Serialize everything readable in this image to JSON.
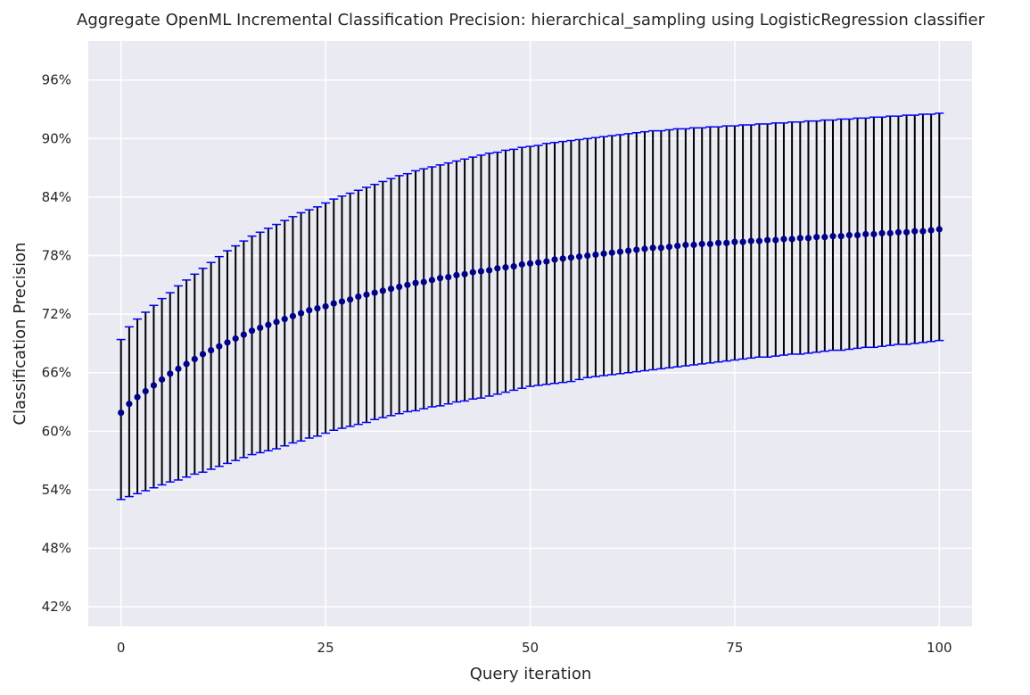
{
  "chart_data": {
    "type": "scatter",
    "title": "Aggregate OpenML Incremental Classification Precision: hierarchical_sampling using LogisticRegression classifier",
    "xlabel": "Query iteration",
    "ylabel": "Classification Precision",
    "xlim": [
      -4,
      104
    ],
    "ylim": [
      40,
      100
    ],
    "xticks": [
      0,
      25,
      50,
      75,
      100
    ],
    "xtick_labels": [
      "0",
      "25",
      "50",
      "75",
      "100"
    ],
    "yticks": [
      42,
      48,
      54,
      60,
      66,
      72,
      78,
      84,
      90,
      96
    ],
    "ytick_labels": [
      "42%",
      "48%",
      "54%",
      "60%",
      "66%",
      "72%",
      "78%",
      "84%",
      "90%",
      "96%"
    ],
    "grid": true,
    "legend": "none",
    "background_color": "#eaeaf2",
    "grid_color": "#ffffff",
    "point_color": "#00008b",
    "errorbar_color": "#000000",
    "cap_color": "#0000ff",
    "x": [
      0,
      1,
      2,
      3,
      4,
      5,
      6,
      7,
      8,
      9,
      10,
      11,
      12,
      13,
      14,
      15,
      16,
      17,
      18,
      19,
      20,
      21,
      22,
      23,
      24,
      25,
      26,
      27,
      28,
      29,
      30,
      31,
      32,
      33,
      34,
      35,
      36,
      37,
      38,
      39,
      40,
      41,
      42,
      43,
      44,
      45,
      46,
      47,
      48,
      49,
      50,
      51,
      52,
      53,
      54,
      55,
      56,
      57,
      58,
      59,
      60,
      61,
      62,
      63,
      64,
      65,
      66,
      67,
      68,
      69,
      70,
      71,
      72,
      73,
      74,
      75,
      76,
      77,
      78,
      79,
      80,
      81,
      82,
      83,
      84,
      85,
      86,
      87,
      88,
      89,
      90,
      91,
      92,
      93,
      94,
      95,
      96,
      97,
      98,
      99,
      100
    ],
    "mean": [
      61.9,
      62.8,
      63.5,
      64.1,
      64.7,
      65.3,
      65.9,
      66.4,
      66.9,
      67.4,
      67.9,
      68.3,
      68.7,
      69.1,
      69.5,
      69.9,
      70.3,
      70.6,
      70.9,
      71.2,
      71.5,
      71.8,
      72.1,
      72.4,
      72.6,
      72.8,
      73.1,
      73.3,
      73.5,
      73.8,
      74.0,
      74.2,
      74.4,
      74.6,
      74.8,
      75.0,
      75.2,
      75.3,
      75.5,
      75.7,
      75.8,
      76.0,
      76.1,
      76.3,
      76.4,
      76.5,
      76.7,
      76.8,
      76.9,
      77.1,
      77.2,
      77.3,
      77.4,
      77.6,
      77.7,
      77.8,
      77.9,
      78.0,
      78.1,
      78.2,
      78.3,
      78.4,
      78.5,
      78.6,
      78.7,
      78.8,
      78.8,
      78.9,
      79.0,
      79.1,
      79.1,
      79.2,
      79.2,
      79.3,
      79.3,
      79.4,
      79.4,
      79.5,
      79.5,
      79.6,
      79.6,
      79.7,
      79.7,
      79.8,
      79.8,
      79.9,
      79.9,
      80.0,
      80.0,
      80.1,
      80.1,
      80.2,
      80.2,
      80.3,
      80.3,
      80.4,
      80.4,
      80.5,
      80.5,
      80.6,
      80.7
    ],
    "upper": [
      69.4,
      70.7,
      71.5,
      72.2,
      72.9,
      73.6,
      74.2,
      74.9,
      75.5,
      76.1,
      76.7,
      77.3,
      77.9,
      78.5,
      79.0,
      79.5,
      80.0,
      80.4,
      80.8,
      81.2,
      81.6,
      82.0,
      82.4,
      82.7,
      83.0,
      83.4,
      83.8,
      84.1,
      84.4,
      84.7,
      85.0,
      85.3,
      85.6,
      85.9,
      86.2,
      86.4,
      86.7,
      86.9,
      87.1,
      87.3,
      87.5,
      87.7,
      87.9,
      88.1,
      88.3,
      88.5,
      88.6,
      88.8,
      88.9,
      89.1,
      89.2,
      89.3,
      89.5,
      89.6,
      89.7,
      89.8,
      89.9,
      90.0,
      90.1,
      90.2,
      90.3,
      90.4,
      90.5,
      90.6,
      90.7,
      90.8,
      90.8,
      90.9,
      91.0,
      91.0,
      91.1,
      91.1,
      91.2,
      91.2,
      91.3,
      91.3,
      91.4,
      91.4,
      91.5,
      91.5,
      91.6,
      91.6,
      91.7,
      91.7,
      91.8,
      91.8,
      91.9,
      91.9,
      92.0,
      92.0,
      92.1,
      92.1,
      92.2,
      92.2,
      92.3,
      92.3,
      92.4,
      92.4,
      92.5,
      92.5,
      92.6
    ],
    "lower": [
      53.0,
      53.3,
      53.6,
      53.9,
      54.2,
      54.5,
      54.8,
      55.0,
      55.3,
      55.6,
      55.8,
      56.1,
      56.4,
      56.7,
      57.0,
      57.3,
      57.6,
      57.8,
      58.0,
      58.2,
      58.5,
      58.8,
      59.0,
      59.3,
      59.5,
      59.8,
      60.1,
      60.3,
      60.5,
      60.7,
      60.9,
      61.2,
      61.4,
      61.6,
      61.8,
      62.0,
      62.1,
      62.3,
      62.5,
      62.6,
      62.8,
      63.0,
      63.1,
      63.3,
      63.4,
      63.6,
      63.8,
      64.0,
      64.2,
      64.4,
      64.6,
      64.7,
      64.8,
      64.9,
      65.0,
      65.1,
      65.3,
      65.5,
      65.6,
      65.7,
      65.8,
      65.9,
      66.0,
      66.1,
      66.2,
      66.3,
      66.4,
      66.5,
      66.6,
      66.7,
      66.8,
      66.9,
      67.0,
      67.1,
      67.2,
      67.3,
      67.4,
      67.5,
      67.6,
      67.6,
      67.7,
      67.8,
      67.9,
      67.9,
      68.0,
      68.1,
      68.2,
      68.3,
      68.3,
      68.4,
      68.5,
      68.6,
      68.6,
      68.7,
      68.8,
      68.9,
      68.9,
      69.0,
      69.1,
      69.2,
      69.3
    ]
  }
}
